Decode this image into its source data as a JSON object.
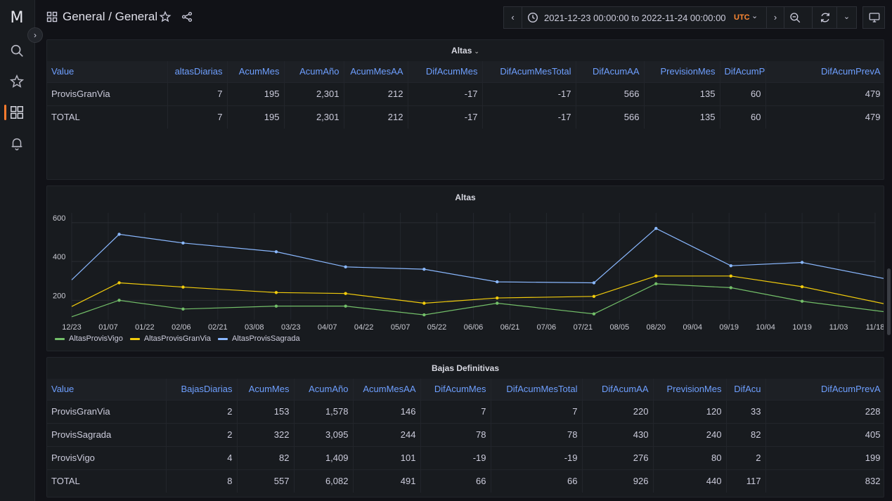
{
  "sidebar": {
    "logo_glyph": "M",
    "items": [
      {
        "icon": "search-icon"
      },
      {
        "icon": "star-icon"
      },
      {
        "icon": "dashboards-icon",
        "active": true
      },
      {
        "icon": "bell-icon"
      }
    ],
    "active_color": "#ff7b2e"
  },
  "topbar": {
    "breadcrumb": "General  / General",
    "time_range": "2021-12-23 00:00:00 to 2022-11-24 00:00:00",
    "timezone": "UTC"
  },
  "altas_table": {
    "title": "Altas",
    "columns": [
      "Value",
      "altasDiarias",
      "AcumMes",
      "AcumAño",
      "AcumMesAA",
      "DifAcumMes",
      "DifAcumMesTotal",
      "DifAcumAA",
      "PrevisionMes",
      "DifAcumP",
      "DifAcumPrevA"
    ],
    "rows": [
      [
        "ProvisGranVia",
        "7",
        "195",
        "2,301",
        "212",
        "-17",
        "-17",
        "566",
        "135",
        "60",
        "479"
      ],
      [
        "TOTAL",
        "7",
        "195",
        "2,301",
        "212",
        "-17",
        "-17",
        "566",
        "135",
        "60",
        "479"
      ]
    ]
  },
  "altas_chart": {
    "title": "Altas"
  },
  "chart_data": {
    "type": "line",
    "title": "Altas",
    "x": [
      "12/23",
      "01/07",
      "01/22",
      "02/06",
      "02/21",
      "03/08",
      "03/23",
      "04/07",
      "04/22",
      "05/07",
      "05/22",
      "06/06",
      "06/21",
      "07/06",
      "07/21",
      "08/05",
      "08/20",
      "09/04",
      "09/19",
      "10/04",
      "10/19",
      "11/03",
      "11/18"
    ],
    "ylim": [
      100,
      650
    ],
    "yticks": [
      200,
      400,
      600
    ],
    "grid": true,
    "legend_position": "bottom-left",
    "series": [
      {
        "name": "AltasProvisVigo",
        "color": "#73bf69",
        "points": [
          [
            0,
            115
          ],
          [
            1.3,
            200
          ],
          [
            3.05,
            155
          ],
          [
            5.6,
            170
          ],
          [
            7.5,
            170
          ],
          [
            9.65,
            125
          ],
          [
            11.65,
            185
          ],
          [
            14.3,
            130
          ],
          [
            16,
            285
          ],
          [
            18.05,
            265
          ],
          [
            20,
            195
          ],
          [
            22.3,
            140
          ],
          [
            22.9,
            118
          ]
        ]
      },
      {
        "name": "AltasProvisGranVia",
        "color": "#f2cc0c",
        "points": [
          [
            0,
            168
          ],
          [
            1.3,
            290
          ],
          [
            3.05,
            268
          ],
          [
            5.6,
            240
          ],
          [
            7.5,
            235
          ],
          [
            9.65,
            185
          ],
          [
            11.65,
            212
          ],
          [
            14.3,
            220
          ],
          [
            16,
            325
          ],
          [
            18.05,
            325
          ],
          [
            20,
            270
          ],
          [
            22.3,
            180
          ],
          [
            22.9,
            155
          ]
        ]
      },
      {
        "name": "AltasProvisSagrada",
        "color": "#8ab8ff",
        "points": [
          [
            0,
            305
          ],
          [
            1.3,
            540
          ],
          [
            3.05,
            495
          ],
          [
            5.6,
            450
          ],
          [
            7.5,
            372
          ],
          [
            9.65,
            360
          ],
          [
            11.65,
            295
          ],
          [
            14.3,
            290
          ],
          [
            16,
            570
          ],
          [
            18.05,
            378
          ],
          [
            20,
            395
          ],
          [
            22.3,
            310
          ],
          [
            22.9,
            260
          ]
        ]
      }
    ]
  },
  "bajas_table": {
    "title": "Bajas Definitivas",
    "columns": [
      "Value",
      "BajasDiarias",
      "AcumMes",
      "AcumAño",
      "AcumMesAA",
      "DifAcumMes",
      "DifAcumMesTotal",
      "DifAcumAA",
      "PrevisionMes",
      "DifAcu",
      "DifAcumPrevA"
    ],
    "rows": [
      [
        "ProvisGranVia",
        "2",
        "153",
        "1,578",
        "146",
        "7",
        "7",
        "220",
        "120",
        "33",
        "228"
      ],
      [
        "ProvisSagrada",
        "2",
        "322",
        "3,095",
        "244",
        "78",
        "78",
        "430",
        "240",
        "82",
        "405"
      ],
      [
        "ProvisVigo",
        "4",
        "82",
        "1,409",
        "101",
        "-19",
        "-19",
        "276",
        "80",
        "2",
        "199"
      ],
      [
        "TOTAL",
        "8",
        "557",
        "6,082",
        "491",
        "66",
        "66",
        "926",
        "440",
        "117",
        "832"
      ]
    ]
  }
}
